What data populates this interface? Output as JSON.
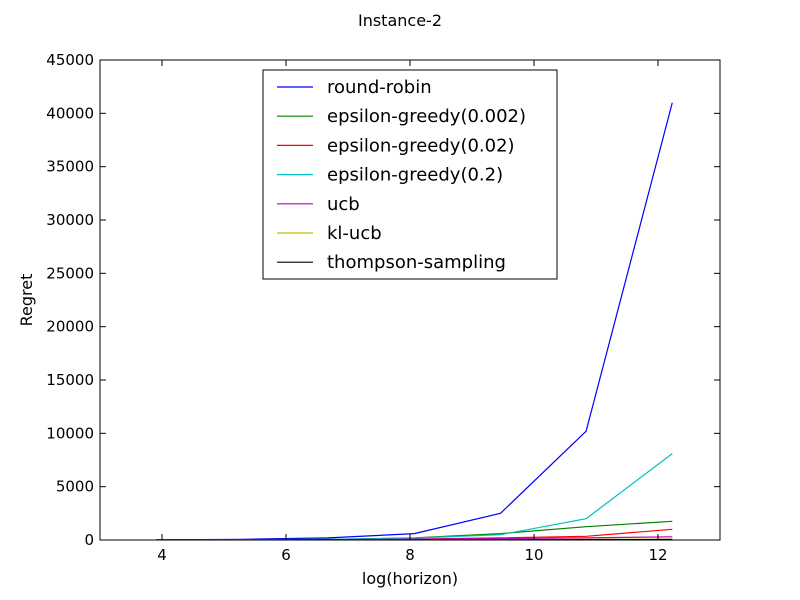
{
  "chart_data": {
    "type": "line",
    "title": "Instance-2",
    "xlabel": "log(horizon)",
    "ylabel": "Regret",
    "xlim": [
      3.0,
      13.0
    ],
    "ylim": [
      0,
      45000
    ],
    "xticks": [
      4,
      6,
      8,
      10,
      12
    ],
    "yticks": [
      0,
      5000,
      10000,
      15000,
      20000,
      25000,
      30000,
      35000,
      40000,
      45000
    ],
    "legend_position": "upper-center",
    "grid": false,
    "x": [
      3.91,
      5.3,
      6.68,
      8.07,
      9.46,
      10.84,
      12.23
    ],
    "series": [
      {
        "name": "round-robin",
        "color": "#0000ff",
        "values": [
          20,
          70,
          200,
          600,
          2500,
          10200,
          41000
        ]
      },
      {
        "name": "epsilon-greedy(0.002)",
        "color": "#008000",
        "values": [
          5,
          15,
          60,
          200,
          600,
          1250,
          1750
        ]
      },
      {
        "name": "epsilon-greedy(0.02)",
        "color": "#ff0000",
        "values": [
          5,
          12,
          30,
          80,
          200,
          350,
          1000
        ]
      },
      {
        "name": "epsilon-greedy(0.2)",
        "color": "#00bfbf",
        "values": [
          5,
          20,
          60,
          180,
          500,
          2000,
          8100
        ]
      },
      {
        "name": "ucb",
        "color": "#bf00bf",
        "values": [
          5,
          15,
          40,
          80,
          130,
          200,
          300
        ]
      },
      {
        "name": "kl-ucb",
        "color": "#bfbf00",
        "values": [
          2,
          5,
          12,
          25,
          40,
          60,
          80
        ]
      },
      {
        "name": "thompson-sampling",
        "color": "#000000",
        "values": [
          2,
          4,
          8,
          15,
          25,
          35,
          45
        ]
      }
    ]
  }
}
